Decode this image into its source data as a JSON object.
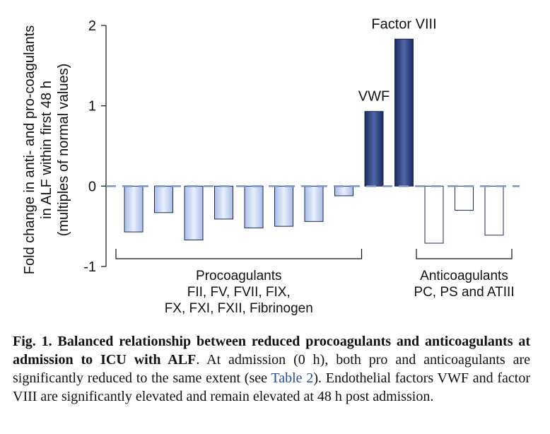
{
  "chart_data": {
    "type": "bar",
    "ylabel_lines": [
      "Fold change in anti- and pro-coagulants",
      "in ALF within first 48 h",
      "(multiples of normal values)"
    ],
    "ylim": [
      -1,
      2
    ],
    "yticks": [
      "2",
      "1",
      "0",
      "-1"
    ],
    "grid": false,
    "baseline_style": "dashed",
    "categories": [
      "",
      "",
      "",
      "",
      "",
      "",
      "",
      "",
      "VWF",
      "Factor VIII",
      "",
      "",
      ""
    ],
    "values": [
      -0.57,
      -0.33,
      -0.67,
      -0.41,
      -0.52,
      -0.5,
      -0.44,
      -0.12,
      0.93,
      1.83,
      -0.71,
      -0.3,
      -0.61
    ],
    "groups": [
      {
        "label_lines": [
          "Procoagulants",
          "FII, FV, FVII, FIX,",
          "FX, FXI, FXII, Fibrinogen"
        ],
        "bars": [
          0,
          7
        ],
        "color": "#c5d3f0"
      },
      {
        "label_lines": [],
        "bars": [
          8,
          9
        ],
        "color": "#2a3f7a"
      },
      {
        "label_lines": [
          "Anticoagulants",
          "PC, PS and ATIII"
        ],
        "bars": [
          10,
          12
        ],
        "color": "#ffffff"
      }
    ]
  },
  "caption": {
    "label": "Fig. 1.",
    "title": "Balanced relationship between reduced procoagulants and anticoagulants at admission to ICU with ALF",
    "body_1": ". At admission (0 h), both pro and anticoagulants are significantly reduced to the same extent (see ",
    "link": "Table 2",
    "body_2": "). Endothelial factors VWF and factor VIII are significantly elevated and remain elevated at 48 h post admission."
  }
}
